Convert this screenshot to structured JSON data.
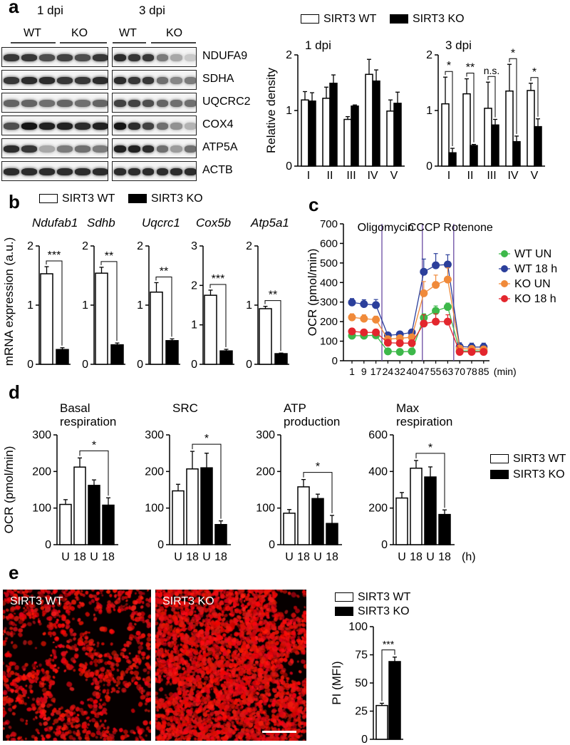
{
  "panels": {
    "a": "a",
    "b": "b",
    "c": "c",
    "d": "d",
    "e": "e"
  },
  "colors": {
    "black": "#000000",
    "white": "#ffffff",
    "purple_line": "#6a4ca3",
    "micro_red": "#e01818",
    "wt_un": "#3db84a",
    "wt_18h": "#2b3f9b",
    "ko_un": "#f08a3a",
    "ko_18h": "#e3262d"
  },
  "legend": {
    "wt": "SIRT3 WT",
    "ko": "SIRT3 KO"
  },
  "blot": {
    "timepoints": [
      "1 dpi",
      "3 dpi"
    ],
    "genotypes": [
      "WT",
      "KO"
    ],
    "proteins": [
      "NDUFA9",
      "SDHA",
      "UQCRC2",
      "COX4",
      "ATP5A",
      "ACTB"
    ]
  },
  "panel_e": {
    "img_wt": "SIRT3 WT",
    "img_ko": "SIRT3 KO"
  },
  "chart_data": [
    {
      "id": "a-1dpi",
      "type": "bar",
      "title": "1 dpi",
      "ylabel": "Relative density",
      "categories": [
        "I",
        "II",
        "III",
        "IV",
        "V"
      ],
      "ylim": [
        0,
        2
      ],
      "yticks": [
        0,
        1,
        2
      ],
      "series": [
        {
          "name": "SIRT3 WT",
          "values": [
            1.19,
            1.22,
            0.84,
            1.65,
            0.99
          ],
          "errors": [
            0.15,
            0.2,
            0.05,
            0.27,
            0.2
          ]
        },
        {
          "name": "SIRT3 KO",
          "values": [
            1.17,
            1.49,
            1.08,
            1.53,
            1.13
          ],
          "errors": [
            0.15,
            0.15,
            0.02,
            0.2,
            0.2
          ]
        }
      ],
      "annotations": []
    },
    {
      "id": "a-3dpi",
      "type": "bar",
      "title": "3 dpi",
      "ylabel": "",
      "categories": [
        "I",
        "II",
        "III",
        "IV",
        "V"
      ],
      "ylim": [
        0,
        2
      ],
      "yticks": [
        0,
        1,
        2
      ],
      "series": [
        {
          "name": "SIRT3 WT",
          "values": [
            1.12,
            1.3,
            1.04,
            1.35,
            1.36
          ],
          "errors": [
            0.48,
            0.27,
            0.47,
            0.48,
            0.13
          ]
        },
        {
          "name": "SIRT3 KO",
          "values": [
            0.24,
            0.37,
            0.74,
            0.44,
            0.71
          ],
          "errors": [
            0.08,
            0.02,
            0.1,
            0.1,
            0.14
          ]
        }
      ],
      "annotations": [
        "*",
        "**",
        "n.s.",
        "*",
        "*"
      ]
    },
    {
      "id": "b-ndufab1",
      "type": "bar",
      "title": "Ndufab1",
      "ylabel": "mRNA expression (a.u.)",
      "categories": [
        ""
      ],
      "ylim": [
        0,
        2
      ],
      "yticks": [
        0,
        1,
        2
      ],
      "series": [
        {
          "name": "SIRT3 WT",
          "values": [
            1.53
          ],
          "errors": [
            0.12
          ]
        },
        {
          "name": "SIRT3 KO",
          "values": [
            0.25
          ],
          "errors": [
            0.03
          ]
        }
      ],
      "annotations": [
        "***"
      ]
    },
    {
      "id": "b-sdhb",
      "type": "bar",
      "title": "Sdhb",
      "ylabel": "",
      "categories": [
        ""
      ],
      "ylim": [
        0,
        2
      ],
      "yticks": [
        0,
        1,
        2
      ],
      "series": [
        {
          "name": "SIRT3 WT",
          "values": [
            1.54
          ],
          "errors": [
            0.1
          ]
        },
        {
          "name": "SIRT3 KO",
          "values": [
            0.33
          ],
          "errors": [
            0.03
          ]
        }
      ],
      "annotations": [
        "**"
      ]
    },
    {
      "id": "b-uqcrc1",
      "type": "bar",
      "title": "Uqcrc1",
      "ylabel": "",
      "categories": [
        ""
      ],
      "ylim": [
        0,
        2
      ],
      "yticks": [
        0,
        1,
        2
      ],
      "series": [
        {
          "name": "SIRT3 WT",
          "values": [
            1.22
          ],
          "errors": [
            0.16
          ]
        },
        {
          "name": "SIRT3 KO",
          "values": [
            0.4
          ],
          "errors": [
            0.03
          ]
        }
      ],
      "annotations": [
        "**"
      ]
    },
    {
      "id": "b-cox5b",
      "type": "bar",
      "title": "Cox5b",
      "ylabel": "",
      "categories": [
        ""
      ],
      "ylim": [
        0,
        3
      ],
      "yticks": [
        0,
        1,
        2,
        3
      ],
      "series": [
        {
          "name": "SIRT3 WT",
          "values": [
            1.75
          ],
          "errors": [
            0.13
          ]
        },
        {
          "name": "SIRT3 KO",
          "values": [
            0.34
          ],
          "errors": [
            0.04
          ]
        }
      ],
      "annotations": [
        "***"
      ]
    },
    {
      "id": "b-atp5a1",
      "type": "bar",
      "title": "Atp5a1",
      "ylabel": "",
      "categories": [
        ""
      ],
      "ylim": [
        0,
        2
      ],
      "yticks": [
        0,
        1,
        2
      ],
      "series": [
        {
          "name": "SIRT3 WT",
          "values": [
            0.94
          ],
          "errors": [
            0.04
          ]
        },
        {
          "name": "SIRT3 KO",
          "values": [
            0.18
          ],
          "errors": [
            0.01
          ]
        }
      ],
      "annotations": [
        "**"
      ]
    },
    {
      "id": "c",
      "type": "line",
      "ylabel": "OCR (pmol/min)",
      "xlabel": "(min)",
      "x": [
        1,
        9,
        17,
        24,
        32,
        40,
        47,
        55,
        63,
        70,
        78,
        85
      ],
      "ylim": [
        0,
        700
      ],
      "yticks": [
        0,
        100,
        200,
        300,
        400,
        500,
        600,
        700
      ],
      "injections": [
        {
          "label": "Oligomycin",
          "after": 17
        },
        {
          "label": "CCCP",
          "after": 47
        },
        {
          "label": "Rotenone",
          "after": 63
        }
      ],
      "series": [
        {
          "name": "WT UN",
          "color": "#3db84a",
          "values": [
            128,
            128,
            130,
            48,
            45,
            48,
            220,
            255,
            275,
            50,
            50,
            50
          ]
        },
        {
          "name": "WT 18 h",
          "color": "#2b3f9b",
          "values": [
            298,
            290,
            285,
            130,
            135,
            145,
            455,
            488,
            492,
            72,
            70,
            70
          ]
        },
        {
          "name": "KO UN",
          "color": "#f08a3a",
          "values": [
            222,
            215,
            210,
            110,
            115,
            120,
            345,
            388,
            415,
            62,
            60,
            58
          ]
        },
        {
          "name": "KO 18 h",
          "color": "#e3262d",
          "values": [
            150,
            145,
            145,
            92,
            90,
            90,
            190,
            200,
            200,
            45,
            45,
            45
          ]
        }
      ]
    },
    {
      "id": "d-basal",
      "type": "bar",
      "title": "Basal respiration",
      "ylabel": "OCR (pmol/min)",
      "categories": [
        "U",
        "18",
        "U",
        "18"
      ],
      "ylim": [
        0,
        300
      ],
      "yticks": [
        0,
        100,
        200,
        300
      ],
      "values": [
        110,
        212,
        162,
        108
      ],
      "errors": [
        13,
        25,
        15,
        20
      ],
      "fills": [
        "white",
        "white",
        "black",
        "black"
      ],
      "annotations": [
        "*"
      ]
    },
    {
      "id": "d-src",
      "type": "bar",
      "title": "SRC",
      "ylabel": "",
      "categories": [
        "U",
        "18",
        "U",
        "18"
      ],
      "ylim": [
        0,
        300
      ],
      "yticks": [
        0,
        100,
        200,
        300
      ],
      "values": [
        147,
        207,
        210,
        55
      ],
      "errors": [
        18,
        48,
        40,
        10
      ],
      "fills": [
        "white",
        "white",
        "black",
        "black"
      ],
      "annotations": [
        "*"
      ]
    },
    {
      "id": "d-atp",
      "type": "bar",
      "title": "ATP production",
      "ylabel": "",
      "categories": [
        "U",
        "18",
        "U",
        "18"
      ],
      "ylim": [
        0,
        300
      ],
      "yticks": [
        0,
        100,
        200,
        300
      ],
      "values": [
        86,
        158,
        126,
        58
      ],
      "errors": [
        10,
        20,
        12,
        22
      ],
      "fills": [
        "white",
        "white",
        "black",
        "black"
      ],
      "annotations": [
        "*"
      ]
    },
    {
      "id": "d-max",
      "type": "bar",
      "title": "Max respiration",
      "ylabel": "",
      "xlabel": "(h)",
      "categories": [
        "U",
        "18",
        "U",
        "18"
      ],
      "ylim": [
        0,
        600
      ],
      "yticks": [
        0,
        200,
        400,
        600
      ],
      "values": [
        255,
        418,
        370,
        165
      ],
      "errors": [
        30,
        42,
        55,
        25
      ],
      "fills": [
        "white",
        "white",
        "black",
        "black"
      ],
      "annotations": [
        "*"
      ]
    },
    {
      "id": "e",
      "type": "bar",
      "ylabel": "PI (MFI)",
      "categories": [
        ""
      ],
      "ylim": [
        0,
        100
      ],
      "yticks": [
        0,
        25,
        50,
        75,
        100
      ],
      "series": [
        {
          "name": "SIRT3 WT",
          "values": [
            30
          ],
          "errors": [
            2
          ]
        },
        {
          "name": "SIRT3 KO",
          "values": [
            69
          ],
          "errors": [
            4
          ]
        }
      ],
      "annotations": [
        "***"
      ]
    }
  ]
}
